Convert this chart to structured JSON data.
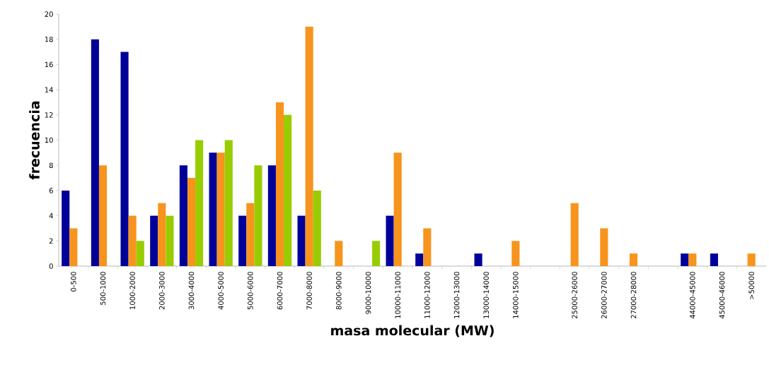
{
  "chart_data": {
    "type": "bar",
    "xlabel": "masa molecular (MW)",
    "ylabel": "frecuencia",
    "categories": [
      "0-500",
      "500-1000",
      "1000-2000",
      "2000-3000",
      "3000-4000",
      "4000-5000",
      "5000-6000",
      "6000-7000",
      "7000-8000",
      "8000-9000",
      "9000-10000",
      "10000-11000",
      "11000-12000",
      "12000-13000",
      "13000-14000",
      "14000-15000",
      null,
      "25000-26000",
      "26000-27000",
      "27000-28000",
      null,
      "44000-45000",
      "45000-46000",
      ">50000"
    ],
    "series": [
      {
        "color": "#000099",
        "values": [
          6,
          18,
          17,
          4,
          8,
          9,
          4,
          8,
          4,
          0,
          0,
          4,
          1,
          0,
          1,
          0,
          0,
          0,
          0,
          0,
          0,
          1,
          1,
          0
        ]
      },
      {
        "color": "#f7941d",
        "values": [
          3,
          8,
          4,
          5,
          7,
          9,
          5,
          13,
          19,
          2,
          0,
          9,
          3,
          0,
          0,
          2,
          0,
          5,
          3,
          1,
          0,
          1,
          0,
          1
        ]
      },
      {
        "color": "#99cc00",
        "values": [
          0,
          0,
          2,
          4,
          10,
          10,
          8,
          12,
          6,
          0,
          2,
          0,
          0,
          0,
          0,
          0,
          0,
          0,
          0,
          0,
          0,
          0,
          0,
          0
        ]
      }
    ],
    "ylim": [
      0,
      20
    ],
    "yticks": [
      0,
      2,
      4,
      6,
      8,
      10,
      12,
      14,
      16,
      18,
      20
    ]
  }
}
